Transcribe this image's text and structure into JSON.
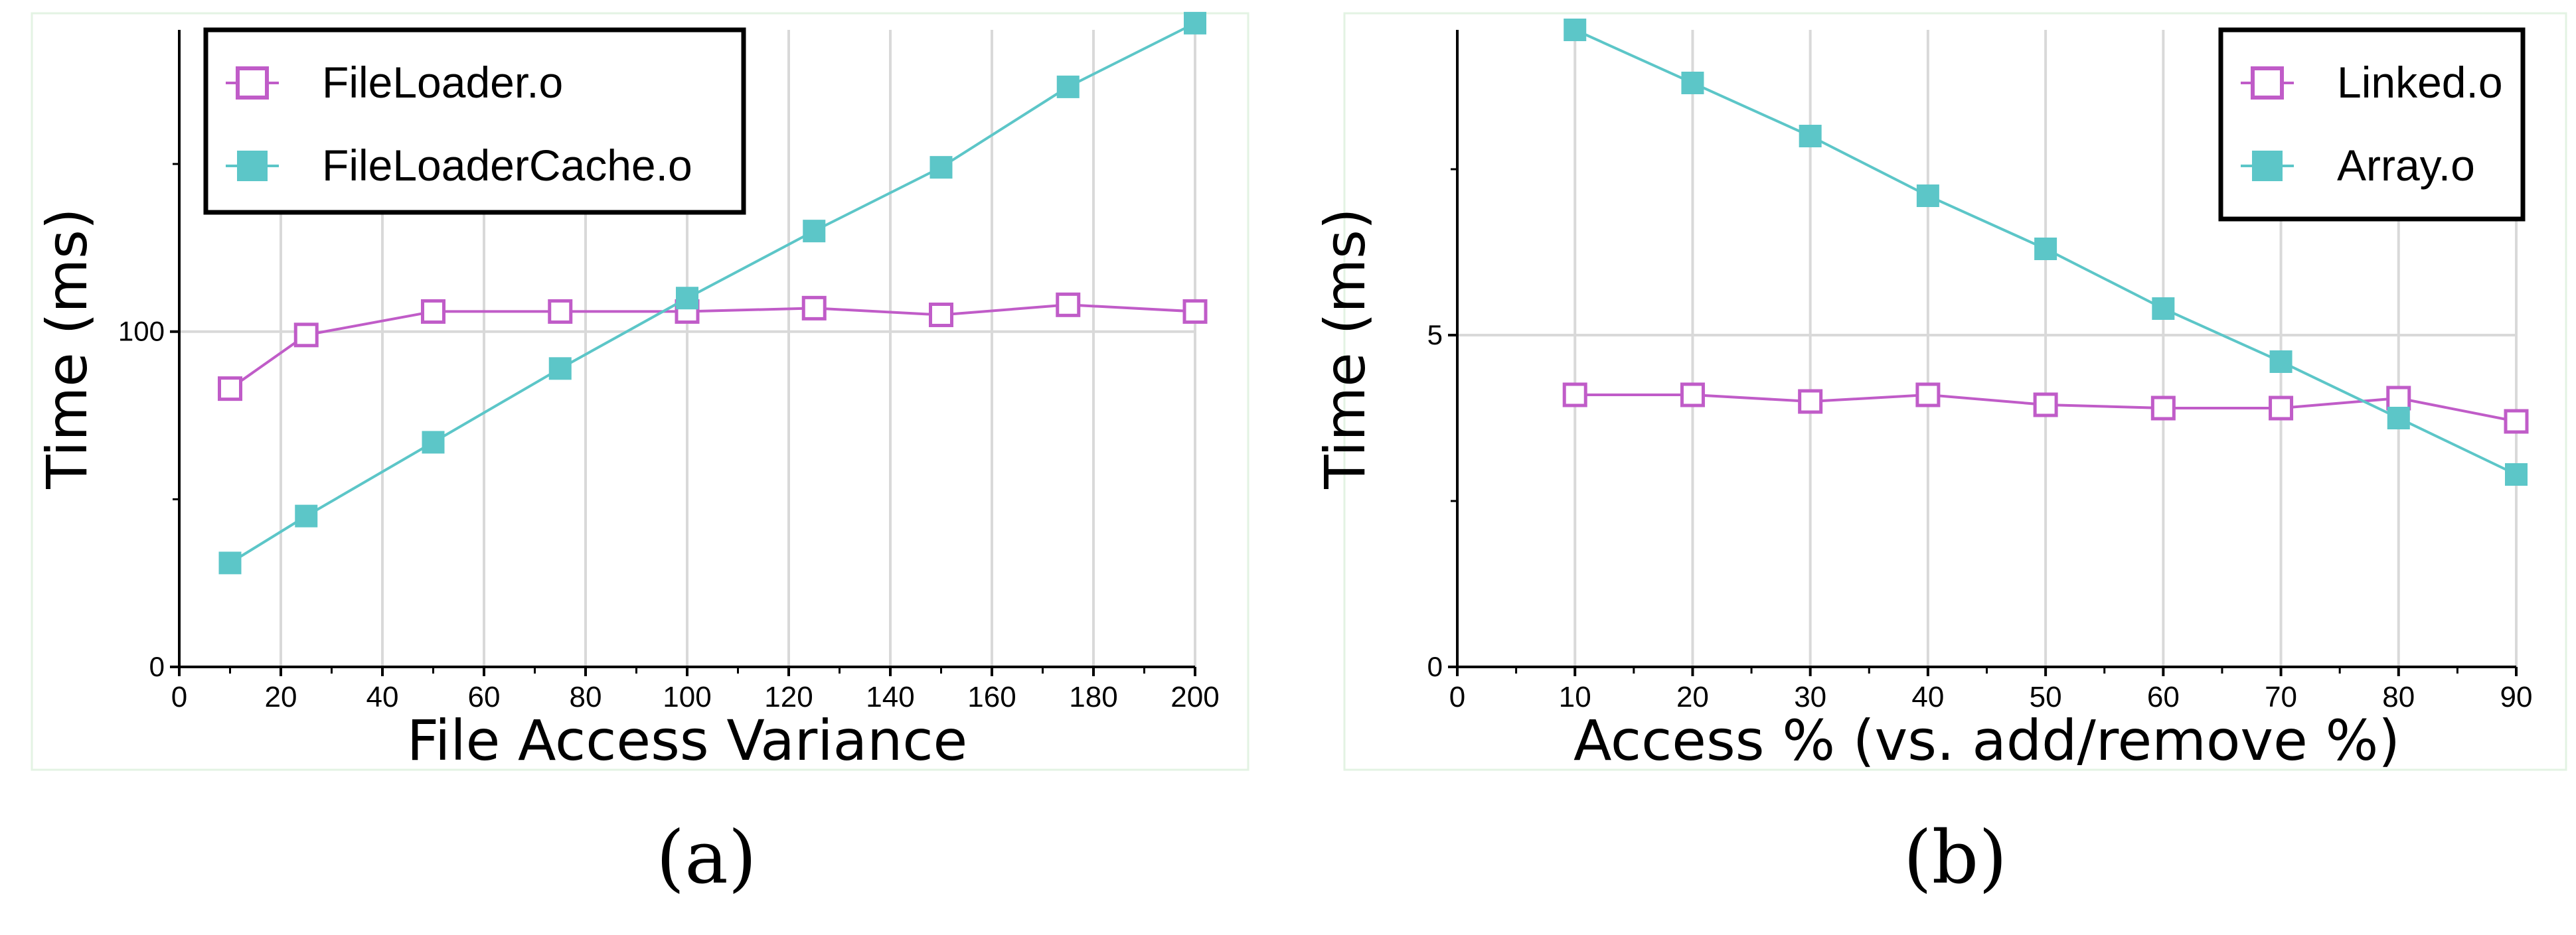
{
  "colors": {
    "series_a": "#c05cc8",
    "series_b": "#5cc6c8",
    "grid": "#d9d9d9",
    "axis": "#000000",
    "panel_border": "#e3f3e3"
  },
  "chart_data": [
    {
      "type": "line",
      "panel_label": "(a)",
      "title": "",
      "xlabel": "File Access Variance",
      "ylabel": "Time (ms)",
      "xlim": [
        0,
        200
      ],
      "ylim": [
        0,
        190
      ],
      "xticks": [
        0,
        20,
        40,
        60,
        80,
        100,
        120,
        140,
        160,
        180,
        200
      ],
      "xtick_labels": [
        "0",
        "20",
        "40",
        "60",
        "80",
        "100",
        "120",
        "140",
        "160",
        "180",
        "200"
      ],
      "yticks": [
        0,
        100
      ],
      "ytick_labels": [
        "0",
        "100"
      ],
      "grid": true,
      "legend_position": "top-left",
      "series": [
        {
          "name": "FileLoader.o",
          "marker": "open-square",
          "x": [
            10,
            25,
            50,
            75,
            100,
            125,
            150,
            175,
            200
          ],
          "y": [
            83,
            99,
            106,
            106,
            106,
            107,
            105,
            108,
            106
          ]
        },
        {
          "name": "FileLoaderCache.o",
          "marker": "filled-square",
          "x": [
            10,
            25,
            50,
            75,
            100,
            125,
            150,
            175,
            200
          ],
          "y": [
            31,
            45,
            67,
            89,
            110,
            130,
            149,
            173,
            192
          ]
        }
      ]
    },
    {
      "type": "line",
      "panel_label": "(b)",
      "title": "",
      "xlabel": "Access % (vs. add/remove %)",
      "ylabel": "Time (ms)",
      "xlim": [
        0,
        90
      ],
      "ylim": [
        0,
        9.6
      ],
      "xticks": [
        0,
        10,
        20,
        30,
        40,
        50,
        60,
        70,
        80,
        90
      ],
      "xtick_labels": [
        "0",
        "10",
        "20",
        "30",
        "40",
        "50",
        "60",
        "70",
        "80",
        "90"
      ],
      "yticks": [
        0,
        5
      ],
      "ytick_labels": [
        "0",
        "5"
      ],
      "grid": true,
      "legend_position": "top-right",
      "series": [
        {
          "name": "Linked.o",
          "marker": "open-square",
          "x": [
            10,
            20,
            30,
            40,
            50,
            60,
            70,
            80,
            90
          ],
          "y": [
            4.1,
            4.1,
            4.0,
            4.1,
            3.95,
            3.9,
            3.9,
            4.05,
            3.7
          ]
        },
        {
          "name": "Array.o",
          "marker": "filled-square",
          "x": [
            10,
            20,
            30,
            40,
            50,
            60,
            70,
            80,
            90
          ],
          "y": [
            9.6,
            8.8,
            8.0,
            7.1,
            6.3,
            5.4,
            4.6,
            3.75,
            2.9
          ]
        }
      ]
    }
  ]
}
